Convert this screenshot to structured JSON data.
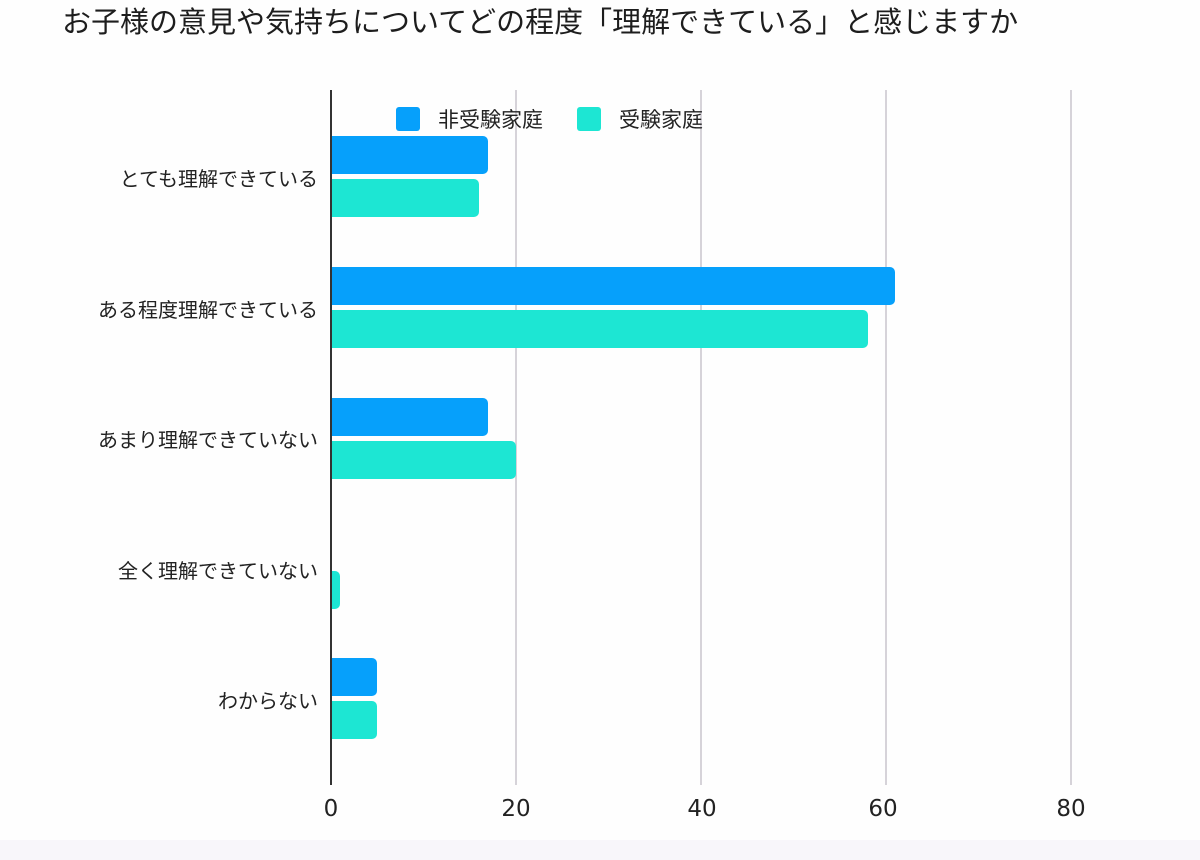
{
  "title": "お子様の意見や気持ちについてどの程度「理解できている」と感じますか",
  "legend": [
    {
      "label": "非受験家庭",
      "color": "#06a0fb"
    },
    {
      "label": "受験家庭",
      "color": "#1de6d3"
    }
  ],
  "categories": [
    "とても理解できている",
    "ある程度理解できている",
    "あまり理解できていない",
    "全く理解できていない",
    "わからない"
  ],
  "xticks": [
    "0",
    "20",
    "40",
    "60",
    "80"
  ],
  "chart_data": {
    "type": "bar",
    "orientation": "horizontal",
    "title": "お子様の意見や気持ちについてどの程度「理解できている」と感じますか",
    "categories": [
      "とても理解できている",
      "ある程度理解できている",
      "あまり理解できていない",
      "全く理解できていない",
      "わからない"
    ],
    "series": [
      {
        "name": "非受験家庭",
        "color": "#06a0fb",
        "values": [
          17,
          61,
          17,
          0,
          5
        ]
      },
      {
        "name": "受験家庭",
        "color": "#1de6d3",
        "values": [
          16,
          58,
          20,
          1,
          5
        ]
      }
    ],
    "xlabel": "",
    "ylabel": "",
    "xlim": [
      0,
      80
    ],
    "xticks": [
      0,
      20,
      40,
      60,
      80
    ],
    "grid": true,
    "legend_position": "top"
  }
}
